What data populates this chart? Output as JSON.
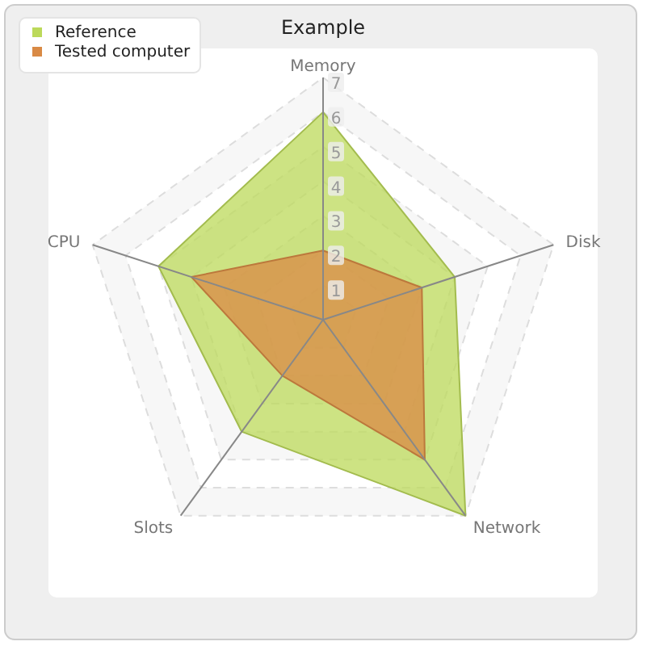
{
  "chart_data": {
    "type": "radar",
    "title": "Example",
    "categories": [
      "Memory",
      "Disk",
      "Network",
      "Slots",
      "CPU"
    ],
    "series": [
      {
        "name": "Reference",
        "color": "#bcd95a",
        "values": [
          6,
          4,
          7,
          4,
          5
        ]
      },
      {
        "name": "Tested computer",
        "color": "#d98a45",
        "values": [
          2,
          3,
          5,
          2,
          4
        ]
      }
    ],
    "ylim": [
      0,
      7
    ],
    "yticks": [
      1,
      2,
      3,
      4,
      5,
      6,
      7
    ],
    "grid": true,
    "legend": "top left"
  }
}
